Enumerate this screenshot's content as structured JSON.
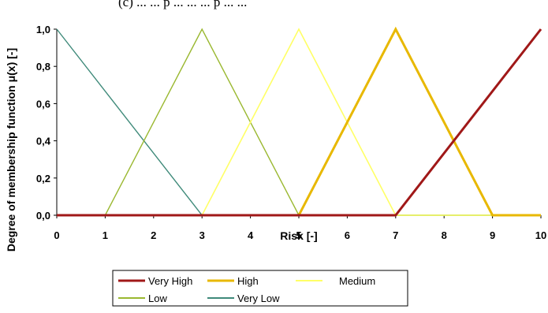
{
  "header_fragment": "(c) ... ... p ... ... ... p ... ...",
  "chart_data": {
    "type": "line",
    "xlabel": "Risk  [-]",
    "ylabel": "Degree of membership function   μ(x)  [-]",
    "xlim": [
      0,
      10
    ],
    "ylim": [
      0,
      1
    ],
    "x_ticks": [
      "0",
      "1",
      "2",
      "3",
      "4",
      "5",
      "6",
      "7",
      "8",
      "9",
      "10"
    ],
    "y_ticks": [
      "0,0",
      "0,2",
      "0,4",
      "0,6",
      "0,8",
      "1,0"
    ],
    "grid": false,
    "legend_position": "bottom",
    "series": [
      {
        "name": "Very High",
        "color": "#a01818",
        "width": 3,
        "points": [
          [
            0,
            0
          ],
          [
            7,
            0
          ],
          [
            10,
            1
          ]
        ]
      },
      {
        "name": "High",
        "color": "#e8b800",
        "width": 3,
        "points": [
          [
            0,
            0
          ],
          [
            5,
            0
          ],
          [
            7,
            1
          ],
          [
            9,
            0
          ],
          [
            10,
            0
          ]
        ]
      },
      {
        "name": "Medium",
        "color": "#ffff66",
        "width": 1.6,
        "points": [
          [
            0,
            0
          ],
          [
            3,
            0
          ],
          [
            5,
            1
          ],
          [
            7,
            0
          ],
          [
            10,
            0
          ]
        ]
      },
      {
        "name": "Low",
        "color": "#9ab830",
        "width": 1.4,
        "points": [
          [
            0,
            0
          ],
          [
            1,
            0
          ],
          [
            3,
            1
          ],
          [
            5,
            0
          ],
          [
            10,
            0
          ]
        ]
      },
      {
        "name": "Very Low",
        "color": "#3f8a7a",
        "width": 1.4,
        "points": [
          [
            0,
            1
          ],
          [
            3,
            0
          ],
          [
            10,
            0
          ]
        ]
      }
    ]
  }
}
